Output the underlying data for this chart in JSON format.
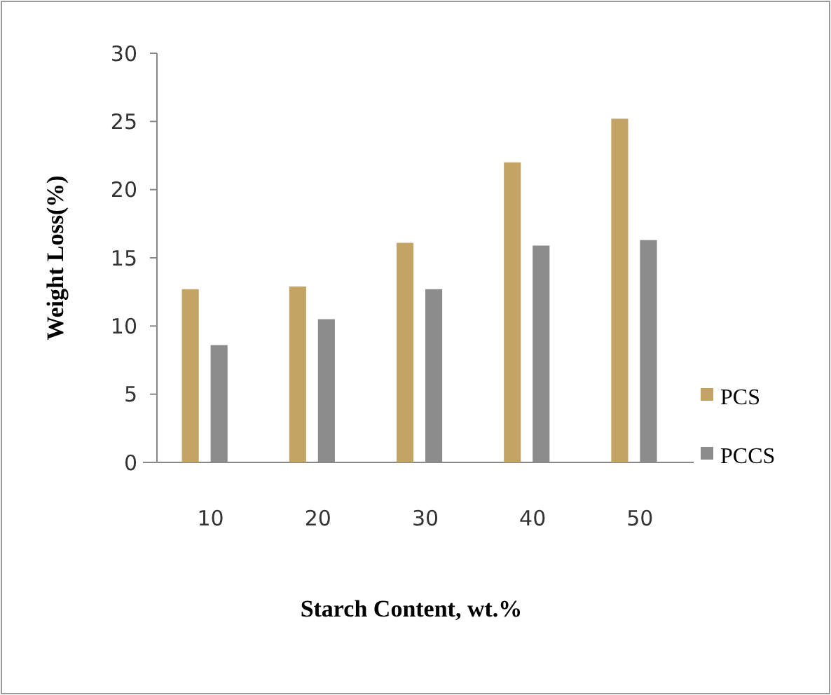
{
  "chart_data": {
    "type": "bar",
    "xlabel": "Starch Content, wt.%",
    "ylabel": "Weight Loss(%)",
    "categories": [
      "10",
      "20",
      "30",
      "40",
      "50"
    ],
    "series": [
      {
        "name": "PCS",
        "color": "#c4a464",
        "values": [
          12.7,
          12.9,
          16.1,
          22.0,
          25.2
        ]
      },
      {
        "name": "PCCS",
        "color": "#8c8c8c",
        "values": [
          8.6,
          10.5,
          12.7,
          15.9,
          16.3
        ]
      }
    ],
    "ylim": [
      0,
      30
    ],
    "yticks": [
      0,
      5,
      10,
      15,
      20,
      25,
      30
    ],
    "grid": false,
    "legend": "right"
  }
}
